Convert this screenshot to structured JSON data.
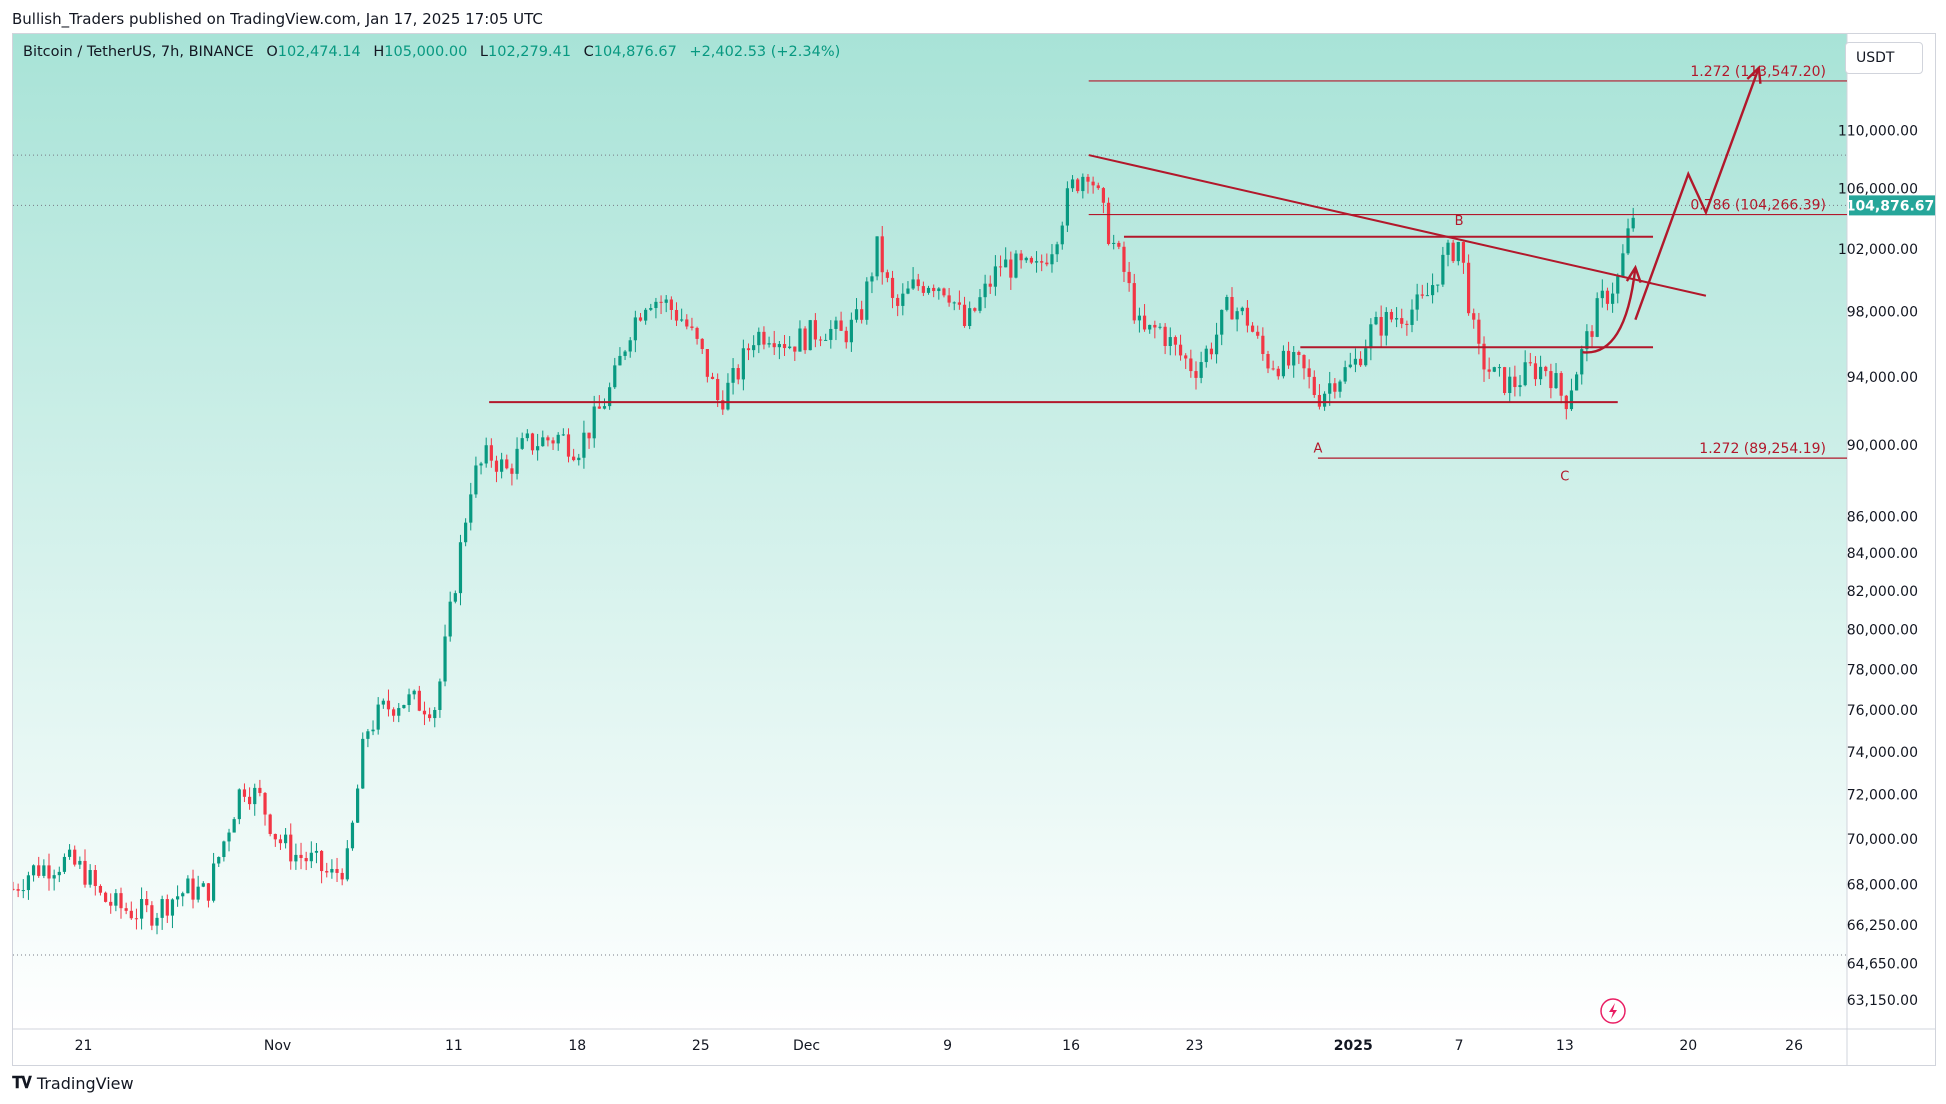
{
  "publish_line": "Bullish_Traders published on TradingView.com, Jan 17, 2025 17:05 UTC",
  "legend": {
    "symbol": "Bitcoin / TetherUS, 7h, BINANCE",
    "open_key": "O",
    "open": "102,474.14",
    "high_key": "H",
    "high": "105,000.00",
    "low_key": "L",
    "low": "102,279.41",
    "close_key": "C",
    "close": "104,876.67",
    "change": "+2,402.53 (+2.34%)"
  },
  "currency": "USDT",
  "footer_brand": "TradingView",
  "colors": {
    "up": "#089981",
    "down": "#f23645",
    "drawing": "#b2182b",
    "price_tag": "#26a69a"
  },
  "chart_data": {
    "type": "candlestick",
    "scale": "log",
    "timeframe": "7h",
    "x_range": [
      "2024-10-17",
      "2025-01-29"
    ],
    "y_range": [
      62000,
      117000
    ],
    "y_ticks": [
      {
        "value": 110000,
        "label": "110,000.00"
      },
      {
        "value": 106000,
        "label": "106,000.00"
      },
      {
        "value": 102000,
        "label": "102,000.00"
      },
      {
        "value": 98000,
        "label": "98,000.00"
      },
      {
        "value": 94000,
        "label": "94,000.00"
      },
      {
        "value": 90000,
        "label": "90,000.00"
      },
      {
        "value": 86000,
        "label": "86,000.00"
      },
      {
        "value": 84000,
        "label": "84,000.00"
      },
      {
        "value": 82000,
        "label": "82,000.00"
      },
      {
        "value": 80000,
        "label": "80,000.00"
      },
      {
        "value": 78000,
        "label": "78,000.00"
      },
      {
        "value": 76000,
        "label": "76,000.00"
      },
      {
        "value": 74000,
        "label": "74,000.00"
      },
      {
        "value": 72000,
        "label": "72,000.00"
      },
      {
        "value": 70000,
        "label": "70,000.00"
      },
      {
        "value": 68000,
        "label": "68,000.00"
      },
      {
        "value": 66250,
        "label": "66,250.00"
      },
      {
        "value": 64650,
        "label": "64,650.00"
      },
      {
        "value": 63150,
        "label": "63,150.00"
      }
    ],
    "x_ticks": [
      {
        "date": "2024-10-21",
        "label": "21"
      },
      {
        "date": "2024-11-01",
        "label": "Nov"
      },
      {
        "date": "2024-11-11",
        "label": "11"
      },
      {
        "date": "2024-11-18",
        "label": "18"
      },
      {
        "date": "2024-11-25",
        "label": "25"
      },
      {
        "date": "2024-12-01",
        "label": "Dec"
      },
      {
        "date": "2024-12-09",
        "label": "9"
      },
      {
        "date": "2024-12-16",
        "label": "16"
      },
      {
        "date": "2024-12-23",
        "label": "23"
      },
      {
        "date": "2025-01-01",
        "label": "2025",
        "bold": true
      },
      {
        "date": "2025-01-07",
        "label": "7"
      },
      {
        "date": "2025-01-13",
        "label": "13"
      },
      {
        "date": "2025-01-20",
        "label": "20"
      },
      {
        "date": "2025-01-26",
        "label": "26"
      }
    ],
    "last_price": {
      "value": 104876.67,
      "label": "104,876.67"
    },
    "dotted_levels": [
      108300,
      104876.67,
      65000
    ],
    "fib_levels": [
      {
        "value": 113547.2,
        "label": "1.272 (113,547.20)",
        "from": "2024-12-17",
        "to": "2025-01-29"
      },
      {
        "value": 104266.39,
        "label": "0.786 (104,266.39)",
        "from": "2024-12-17",
        "to": "2025-01-29"
      },
      {
        "value": 89254.19,
        "label": "1.272 (89,254.19)",
        "from": "2024-12-30",
        "to": "2025-01-29"
      }
    ],
    "horizontal_lines": [
      {
        "value": 92500,
        "from": "2024-11-13",
        "to": "2025-01-16"
      },
      {
        "value": 102800,
        "from": "2024-12-19",
        "to": "2025-01-18"
      },
      {
        "value": 95800,
        "from": "2024-12-29",
        "to": "2025-01-18"
      }
    ],
    "trendline": {
      "from": {
        "date": "2024-12-17",
        "value": 108300
      },
      "to": {
        "date": "2025-01-21",
        "value": 99000
      }
    },
    "wave_labels": [
      {
        "label": "A",
        "date": "2024-12-30",
        "value": 90600,
        "pos": "below"
      },
      {
        "label": "B",
        "date": "2025-01-07",
        "value": 102900,
        "pos": "above"
      },
      {
        "label": "C",
        "date": "2025-01-13",
        "value": 89000,
        "pos": "below"
      }
    ],
    "projection_path": [
      {
        "date": "2025-01-17",
        "value": 97500
      },
      {
        "date": "2025-01-20",
        "value": 107000
      },
      {
        "date": "2025-01-21",
        "value": 104400
      },
      {
        "date": "2025-01-24",
        "value": 114500
      }
    ],
    "curve_arrow": {
      "from": {
        "date": "2025-01-14",
        "value": 95500
      },
      "to": {
        "date": "2025-01-17",
        "value": 100800
      }
    },
    "price_path": [
      [
        "2024-10-17",
        67800
      ],
      [
        "2024-10-18",
        68600
      ],
      [
        "2024-10-20",
        69000
      ],
      [
        "2024-10-21",
        68600
      ],
      [
        "2024-10-22",
        67400
      ],
      [
        "2024-10-23",
        67000
      ],
      [
        "2024-10-24",
        66800
      ],
      [
        "2024-10-25",
        66800
      ],
      [
        "2024-10-26",
        67400
      ],
      [
        "2024-10-27",
        67800
      ],
      [
        "2024-10-28",
        67600
      ],
      [
        "2024-10-29",
        70000
      ],
      [
        "2024-10-30",
        72500
      ],
      [
        "2024-10-31",
        71800
      ],
      [
        "2024-11-01",
        70000
      ],
      [
        "2024-11-02",
        69300
      ],
      [
        "2024-11-03",
        69000
      ],
      [
        "2024-11-04",
        68300
      ],
      [
        "2024-11-05",
        69000
      ],
      [
        "2024-11-06",
        75000
      ],
      [
        "2024-11-07",
        76000
      ],
      [
        "2024-11-08",
        76500
      ],
      [
        "2024-11-10",
        76200
      ],
      [
        "2024-11-11",
        82000
      ],
      [
        "2024-11-12",
        88000
      ],
      [
        "2024-11-13",
        89500
      ],
      [
        "2024-11-14",
        88500
      ],
      [
        "2024-11-15",
        90000
      ],
      [
        "2024-11-17",
        90500
      ],
      [
        "2024-11-18",
        89800
      ],
      [
        "2024-11-19",
        91500
      ],
      [
        "2024-11-20",
        93500
      ],
      [
        "2024-11-21",
        97000
      ],
      [
        "2024-11-22",
        99000
      ],
      [
        "2024-11-23",
        98500
      ],
      [
        "2024-11-24",
        97500
      ],
      [
        "2024-11-25",
        95500
      ],
      [
        "2024-11-26",
        92500
      ],
      [
        "2024-11-27",
        94000
      ],
      [
        "2024-11-28",
        96500
      ],
      [
        "2024-11-29",
        96800
      ],
      [
        "2024-11-30",
        96000
      ],
      [
        "2024-12-02",
        97000
      ],
      [
        "2024-12-03",
        96500
      ],
      [
        "2024-12-04",
        97500
      ],
      [
        "2024-12-05",
        102000
      ],
      [
        "2024-12-06",
        98000
      ],
      [
        "2024-12-07",
        99500
      ],
      [
        "2024-12-08",
        100000
      ],
      [
        "2024-12-09",
        99500
      ],
      [
        "2024-12-10",
        97000
      ],
      [
        "2024-12-11",
        99000
      ],
      [
        "2024-12-12",
        101000
      ],
      [
        "2024-12-13",
        100800
      ],
      [
        "2024-12-14",
        100500
      ],
      [
        "2024-12-15",
        102500
      ],
      [
        "2024-12-16",
        106000
      ],
      [
        "2024-12-17",
        107500
      ],
      [
        "2024-12-18",
        103500
      ],
      [
        "2024-12-19",
        100500
      ],
      [
        "2024-12-20",
        96500
      ],
      [
        "2024-12-21",
        97000
      ],
      [
        "2024-12-22",
        95500
      ],
      [
        "2024-12-23",
        94500
      ],
      [
        "2024-12-24",
        96000
      ],
      [
        "2024-12-25",
        98500
      ],
      [
        "2024-12-26",
        97500
      ],
      [
        "2024-12-27",
        95000
      ],
      [
        "2024-12-28",
        94800
      ],
      [
        "2024-12-29",
        94600
      ],
      [
        "2024-12-30",
        92800
      ],
      [
        "2024-12-31",
        94000
      ],
      [
        "2025-01-01",
        94600
      ],
      [
        "2025-01-02",
        96800
      ],
      [
        "2025-01-03",
        97500
      ],
      [
        "2025-01-04",
        98000
      ],
      [
        "2025-01-05",
        98500
      ],
      [
        "2025-01-06",
        101000
      ],
      [
        "2025-01-07",
        102500
      ],
      [
        "2025-01-08",
        95500
      ],
      [
        "2025-01-09",
        94000
      ],
      [
        "2025-01-10",
        93500
      ],
      [
        "2025-01-11",
        94400
      ],
      [
        "2025-01-12",
        94600
      ],
      [
        "2025-01-13",
        92500
      ],
      [
        "2025-01-14",
        95500
      ],
      [
        "2025-01-15",
        98500
      ],
      [
        "2025-01-16",
        100000
      ],
      [
        "2025-01-17",
        104876.67
      ]
    ]
  }
}
